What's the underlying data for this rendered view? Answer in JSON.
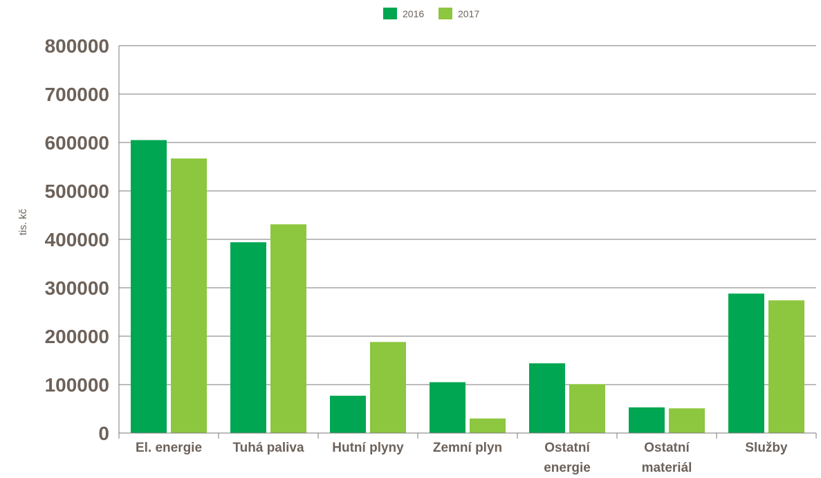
{
  "chart_data": {
    "type": "bar",
    "ylabel": "tis. kč",
    "xlabel": "",
    "ylim": [
      0,
      800000
    ],
    "yticks": [
      0,
      100000,
      200000,
      300000,
      400000,
      500000,
      600000,
      700000,
      800000
    ],
    "grid": true,
    "legend_position": "top-center",
    "categories": [
      [
        "El. energie"
      ],
      [
        "Tuhá paliva"
      ],
      [
        "Hutní plyny"
      ],
      [
        "Zemní plyn"
      ],
      [
        "Ostatní",
        "energie"
      ],
      [
        "Ostatní",
        "materiál"
      ],
      [
        "Služby"
      ]
    ],
    "series": [
      {
        "name": "2016",
        "color": "#00a651",
        "values": [
          605000,
          394000,
          77000,
          105000,
          144000,
          53000,
          288000
        ]
      },
      {
        "name": "2017",
        "color": "#8dc63f",
        "values": [
          567000,
          431000,
          188000,
          30000,
          101000,
          51000,
          274000
        ]
      }
    ]
  }
}
